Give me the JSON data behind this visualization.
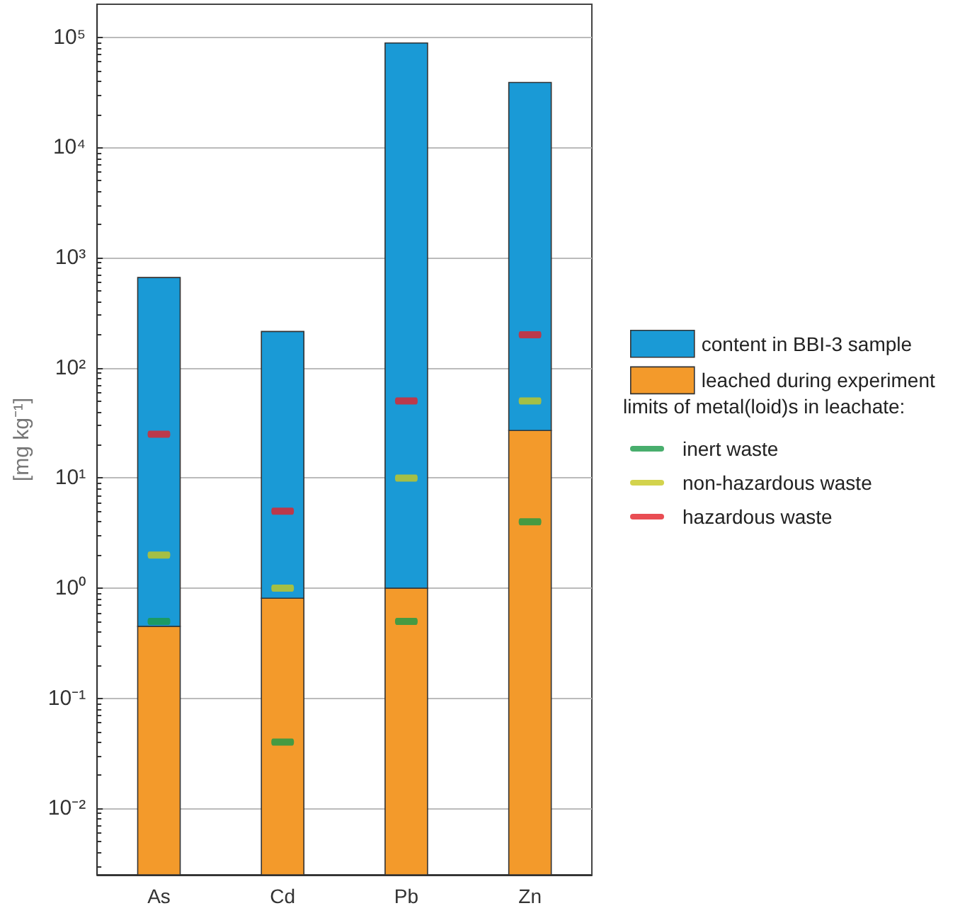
{
  "chart_data": {
    "type": "bar",
    "ylabel": "[mg kg⁻¹]",
    "stacked": true,
    "categories": [
      "As",
      "Cd",
      "Pb",
      "Zn"
    ],
    "series": [
      {
        "name": "leached during experiment",
        "color": "#f39a2b",
        "values": [
          0.45,
          0.81,
          1.0,
          27
        ]
      },
      {
        "name": "content in BBI-3 sample",
        "color": "#1a9ad6",
        "values": [
          660,
          213,
          89000,
          39000
        ]
      },
      {
        "name": "inert waste",
        "type": "scatter",
        "color": "#1a9a48",
        "x": [
          "As",
          "Cd",
          "Pb",
          "Zn"
        ],
        "values": [
          0.5,
          0.04,
          0.5,
          4
        ]
      },
      {
        "name": "non-hazardous waste",
        "type": "scatter",
        "color": "#c8c820",
        "x": [
          "As",
          "Cd",
          "Pb",
          "Zn"
        ],
        "values": [
          2,
          1,
          10,
          50
        ]
      },
      {
        "name": "hazardous waste",
        "type": "scatter",
        "color": "#e32028",
        "x": [
          "As",
          "Cd",
          "Pb",
          "Zn"
        ],
        "values": [
          25,
          5,
          50,
          200
        ]
      }
    ],
    "annotations": [
      "limits of metal(loid)s in leachate:"
    ],
    "log": "y",
    "ylim": [
      0.0025,
      200000
    ],
    "yticks": [
      {
        "value": 0.01,
        "label": "10⁻²"
      },
      {
        "value": 0.1,
        "label": "10⁻¹"
      },
      {
        "value": 1,
        "label": "10⁰"
      },
      {
        "value": 10,
        "label": "10¹"
      },
      {
        "value": 100,
        "label": "10²"
      },
      {
        "value": 1000,
        "label": "10³"
      },
      {
        "value": 10000,
        "label": "10⁴"
      },
      {
        "value": 100000,
        "label": "10⁵"
      }
    ],
    "grid": "y",
    "legend": "right"
  }
}
